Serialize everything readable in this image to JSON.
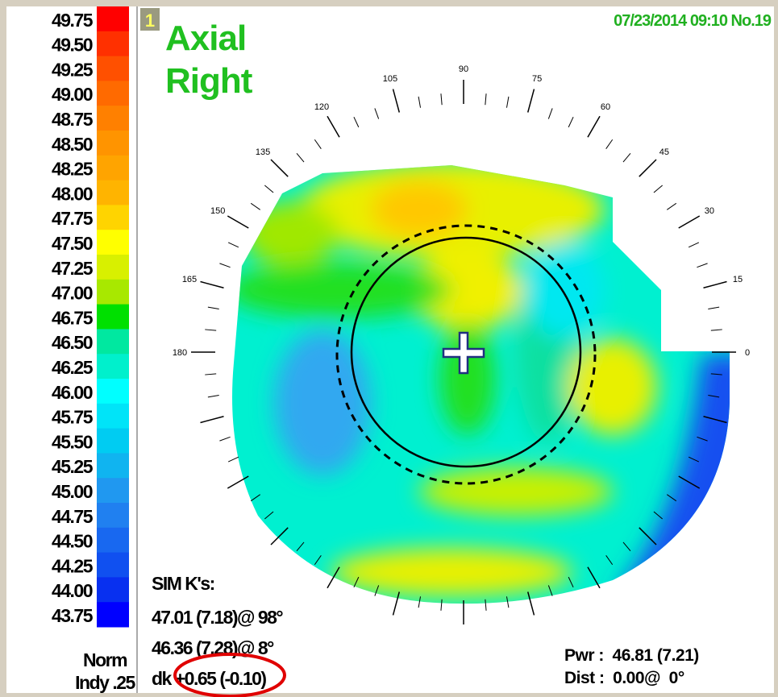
{
  "scale": [
    {
      "label": "49.75",
      "color": "#ff0000"
    },
    {
      "label": "49.50",
      "color": "#ff3000"
    },
    {
      "label": "49.25",
      "color": "#ff5000"
    },
    {
      "label": "49.00",
      "color": "#ff6a00"
    },
    {
      "label": "48.75",
      "color": "#ff8000"
    },
    {
      "label": "48.50",
      "color": "#ff9400"
    },
    {
      "label": "48.25",
      "color": "#ffa400"
    },
    {
      "label": "48.00",
      "color": "#ffb400"
    },
    {
      "label": "47.75",
      "color": "#ffd400"
    },
    {
      "label": "47.50",
      "color": "#ffff00"
    },
    {
      "label": "47.25",
      "color": "#d8f000"
    },
    {
      "label": "47.00",
      "color": "#a8e800"
    },
    {
      "label": "46.75",
      "color": "#00e000"
    },
    {
      "label": "46.50",
      "color": "#00e8a0"
    },
    {
      "label": "46.25",
      "color": "#00f0cc"
    },
    {
      "label": "46.00",
      "color": "#00ffff"
    },
    {
      "label": "45.75",
      "color": "#00e4f8"
    },
    {
      "label": "45.50",
      "color": "#00ccf2"
    },
    {
      "label": "45.25",
      "color": "#10b4f0"
    },
    {
      "label": "45.00",
      "color": "#2098f0"
    },
    {
      "label": "44.75",
      "color": "#2080f0"
    },
    {
      "label": "44.50",
      "color": "#1868f0"
    },
    {
      "label": "44.25",
      "color": "#1050f0"
    },
    {
      "label": "44.00",
      "color": "#0830f0"
    },
    {
      "label": "43.75",
      "color": "#0000ff"
    }
  ],
  "scale_footer": [
    "Norm",
    "Indy .25"
  ],
  "badge": "1",
  "title": [
    "Axial",
    "Right"
  ],
  "timestamp": "07/23/2014 09:10 No.19",
  "angle_labels": [
    0,
    15,
    30,
    45,
    60,
    75,
    90,
    105,
    120,
    135,
    150,
    165,
    180
  ],
  "sim_k": {
    "heading": "SIM K's:",
    "lines": [
      "47.01 (7.18)@ 98°",
      "46.36 (7.28)@  8°",
      "dk +0.65 (-0.10)"
    ]
  },
  "readout": [
    "Pwr :  46.81 (7.21)",
    "Dist :  0.00@  0°"
  ]
}
